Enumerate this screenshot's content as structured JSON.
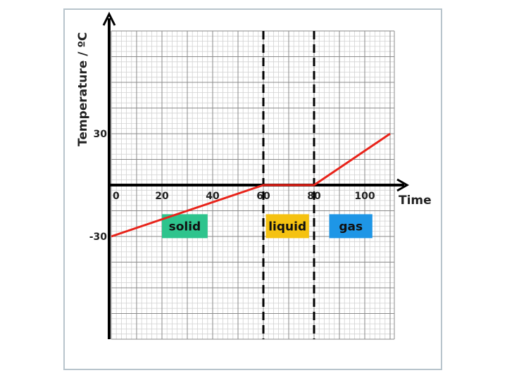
{
  "chart_data": {
    "type": "line",
    "xlabel": "Time",
    "ylabel": "Temperature / ºC",
    "xlim": [
      0,
      110
    ],
    "ylim": [
      -60,
      60
    ],
    "x_ticks": [
      {
        "value": 0,
        "label": "0"
      },
      {
        "value": 20,
        "label": "20"
      },
      {
        "value": 40,
        "label": "40"
      },
      {
        "value": 60,
        "label": "60"
      },
      {
        "value": 80,
        "label": "80"
      },
      {
        "value": 100,
        "label": "100"
      }
    ],
    "y_ticks": [
      {
        "value": 30,
        "label": "30"
      },
      {
        "value": -30,
        "label": "-30"
      }
    ],
    "grid": true,
    "series": [
      {
        "color": "#e8231a",
        "x": [
          0,
          60,
          80,
          110
        ],
        "y": [
          -30,
          0,
          0,
          30
        ]
      }
    ],
    "vlines": [
      60,
      80
    ],
    "regions": [
      {
        "label": "solid",
        "x_from": 20,
        "x_to": 38,
        "y_center": -24,
        "color": "#2ec48d"
      },
      {
        "label": "liquid",
        "x_from": 61,
        "x_to": 78,
        "y_center": -24,
        "color": "#f5c211"
      },
      {
        "label": "gas",
        "x_from": 86,
        "x_to": 103,
        "y_center": -24,
        "color": "#1e96e6"
      }
    ]
  }
}
